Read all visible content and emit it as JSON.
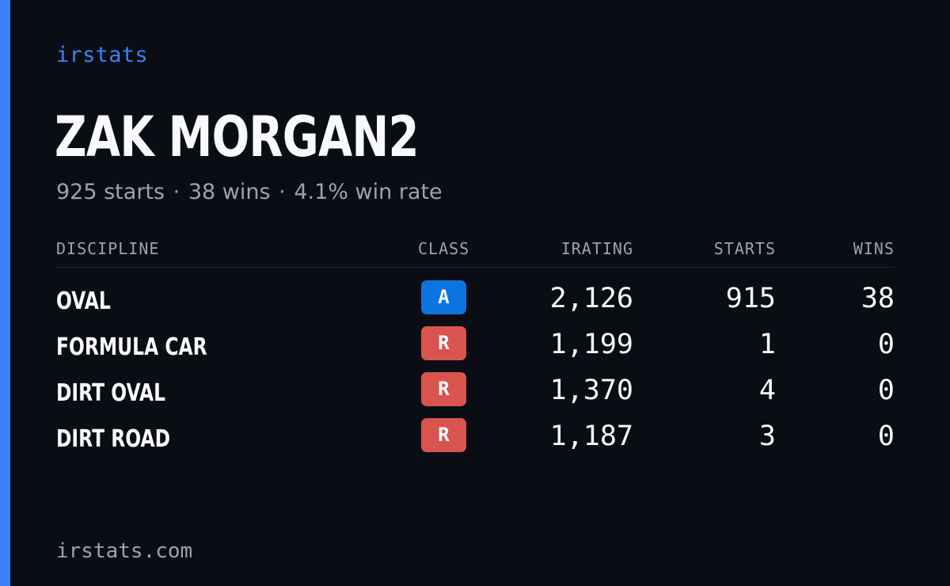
{
  "brand": "irstats",
  "player": {
    "name": "ZAK MORGAN2",
    "starts_text": "925 starts",
    "wins_text": "38 wins",
    "win_rate_text": "4.1% win rate",
    "separator": "·"
  },
  "table": {
    "headers": {
      "discipline": "DISCIPLINE",
      "class": "CLASS",
      "irating": "IRATING",
      "starts": "STARTS",
      "wins": "WINS"
    },
    "rows": [
      {
        "discipline": "OVAL",
        "class": "A",
        "class_color": "#0b74e0",
        "irating": "2,126",
        "starts": "915",
        "wins": "38"
      },
      {
        "discipline": "FORMULA CAR",
        "class": "R",
        "class_color": "#d9534f",
        "irating": "1,199",
        "starts": "1",
        "wins": "0"
      },
      {
        "discipline": "DIRT OVAL",
        "class": "R",
        "class_color": "#d9534f",
        "irating": "1,370",
        "starts": "4",
        "wins": "0"
      },
      {
        "discipline": "DIRT ROAD",
        "class": "R",
        "class_color": "#d9534f",
        "irating": "1,187",
        "starts": "3",
        "wins": "0"
      }
    ]
  },
  "footer": {
    "url": "irstats.com"
  },
  "colors": {
    "accent": "#3b82f6",
    "background": "#0a0d14",
    "muted_text": "#9aa3b2"
  }
}
